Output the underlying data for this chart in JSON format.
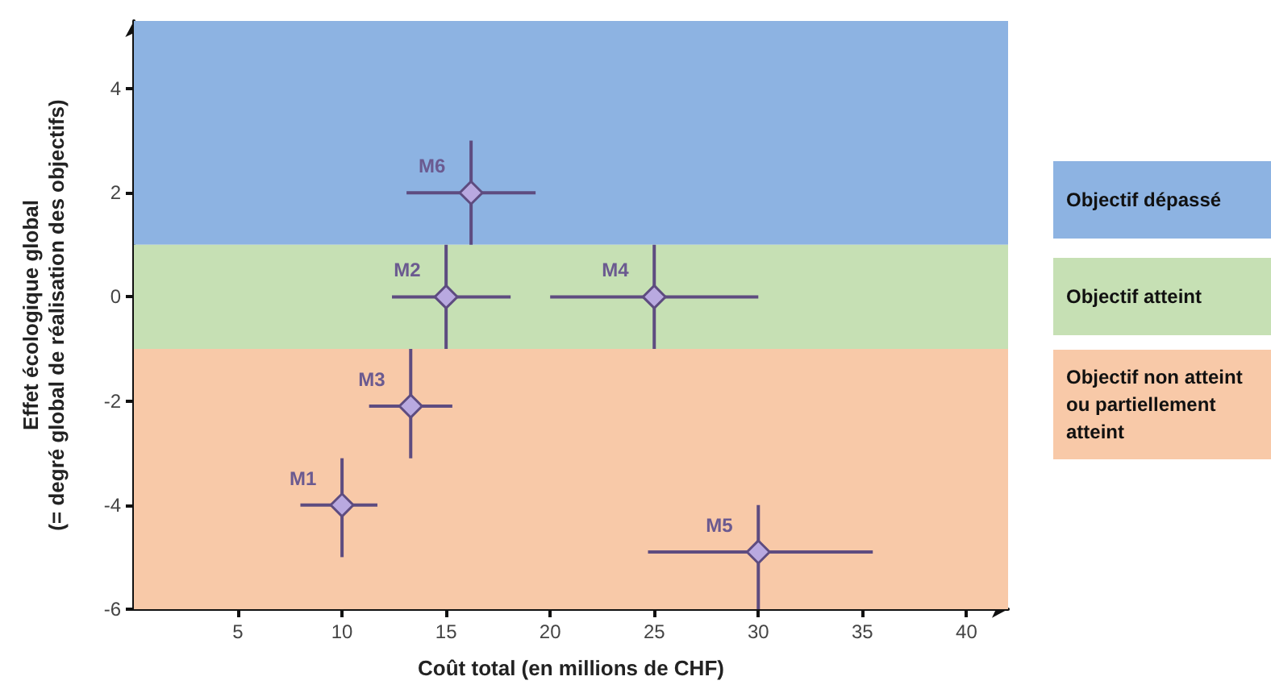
{
  "chart_data": {
    "type": "scatter",
    "xlabel": "Coût total (en millions de CHF)",
    "ylabel": "Effet écologique global\n(= degré global de réalisation des objectifs)",
    "x": [
      10,
      15,
      13.3,
      25,
      30,
      16.2
    ],
    "series": [
      {
        "color": "#b9a9e0",
        "values": [
          -4,
          0,
          -2.1,
          0,
          -4.9,
          2
        ],
        "xerrors": [
          [
            8,
            11.7
          ],
          [
            12.4,
            18.1
          ],
          [
            11.3,
            15.3
          ],
          [
            20,
            30
          ],
          [
            24.7,
            35.5
          ],
          [
            13.1,
            19.3
          ]
        ],
        "errors": [
          [
            -5,
            -3.1
          ],
          [
            -1,
            1
          ],
          [
            -3.1,
            -1
          ],
          [
            -1,
            1
          ],
          [
            -6,
            -4
          ],
          [
            1,
            3
          ]
        ]
      }
    ],
    "annotations": [
      {
        "text": "M1",
        "x": 10,
        "y": -4
      },
      {
        "text": "M2",
        "x": 15,
        "y": 0
      },
      {
        "text": "M3",
        "x": 13.3,
        "y": -2.1
      },
      {
        "text": "M4",
        "x": 25,
        "y": 0
      },
      {
        "text": "M5",
        "x": 30,
        "y": -4.9
      },
      {
        "text": "M6",
        "x": 16.2,
        "y": 2
      }
    ],
    "bands": [
      {
        "axis": "y",
        "from": 1,
        "to": 5.3,
        "label": "Objectif dépassé",
        "color": "#8db3e2"
      },
      {
        "axis": "y",
        "from": -1,
        "to": 1,
        "label": "Objectif atteint",
        "color": "#c6e0b4"
      },
      {
        "axis": "y",
        "from": -6,
        "to": -1,
        "label": "Objectif non atteint\nou partiellement\natteint",
        "color": "#f8c9a8"
      }
    ],
    "marker": "diamond",
    "xlim": [
      0,
      42
    ],
    "xticks": [
      5,
      10,
      15,
      20,
      25,
      30,
      35,
      40
    ],
    "ylim": [
      -6,
      5.3
    ],
    "yticks": [
      -6,
      -4,
      -2,
      0,
      2,
      4
    ],
    "grid": false
  }
}
